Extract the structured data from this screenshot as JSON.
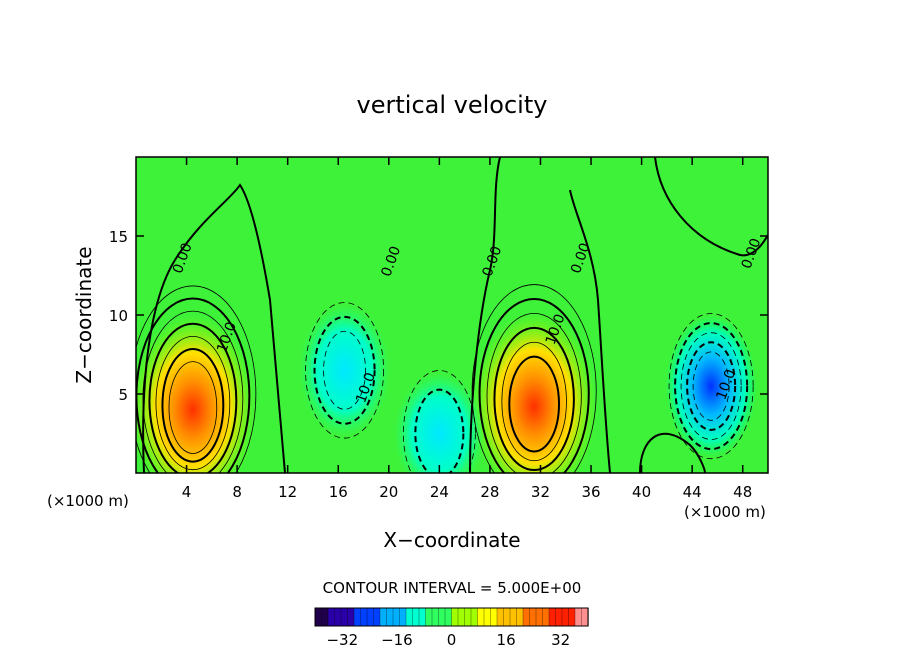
{
  "chart_data": {
    "type": "heatmap",
    "title": "vertical velocity",
    "xlabel": "X−coordinate",
    "ylabel": "Z−coordinate",
    "x_unit_left": "(×1000 m)",
    "x_unit_right": "(×1000 m)",
    "xlim": [
      0,
      50
    ],
    "ylim": [
      0,
      20
    ],
    "x_ticks": [
      "4",
      "8",
      "12",
      "16",
      "20",
      "24",
      "28",
      "32",
      "36",
      "40",
      "44",
      "48"
    ],
    "y_ticks": [
      "5",
      "10",
      "15"
    ],
    "contour_interval_text": "CONTOUR INTERVAL = 5.000E+00",
    "contour_labels": [
      {
        "text": "0.00",
        "x": 4,
        "z": 13.5
      },
      {
        "text": "10.0",
        "x": 7.5,
        "z": 8.5
      },
      {
        "text": "0.00",
        "x": 20.5,
        "z": 13.3
      },
      {
        "text": "10.0",
        "x": 18.5,
        "z": 5.3
      },
      {
        "text": "0.00",
        "x": 28.5,
        "z": 13.3
      },
      {
        "text": "10.0",
        "x": 33.5,
        "z": 9.0
      },
      {
        "text": "0.00",
        "x": 35.5,
        "z": 13.5
      },
      {
        "text": "10.0",
        "x": 47.0,
        "z": 5.5
      },
      {
        "text": "0.00",
        "x": 49.0,
        "z": 13.8
      }
    ],
    "centers": [
      {
        "name": "updraft",
        "x": 4.5,
        "z": 4.0,
        "value": 36
      },
      {
        "name": "updraft",
        "x": 31.5,
        "z": 4.2,
        "value": 34
      },
      {
        "name": "downdraft",
        "x": 16.5,
        "z": 6.5,
        "value": -16
      },
      {
        "name": "downdraft",
        "x": 24.0,
        "z": 2.5,
        "value": -14
      },
      {
        "name": "downdraft",
        "x": 45.5,
        "z": 5.5,
        "value": -26
      }
    ],
    "colorbar": {
      "ticks": [
        "−32",
        "−16",
        "0",
        "16",
        "32"
      ],
      "tick_values": [
        -32,
        -16,
        0,
        16,
        32
      ],
      "range": [
        -40,
        40
      ],
      "colors": [
        "#20004a",
        "#2a00a8",
        "#0040ff",
        "#00b0ff",
        "#00ffd0",
        "#30ff60",
        "#a0ff00",
        "#ffff00",
        "#ffc000",
        "#ff7000",
        "#ff2000",
        "#ff9090"
      ]
    }
  }
}
